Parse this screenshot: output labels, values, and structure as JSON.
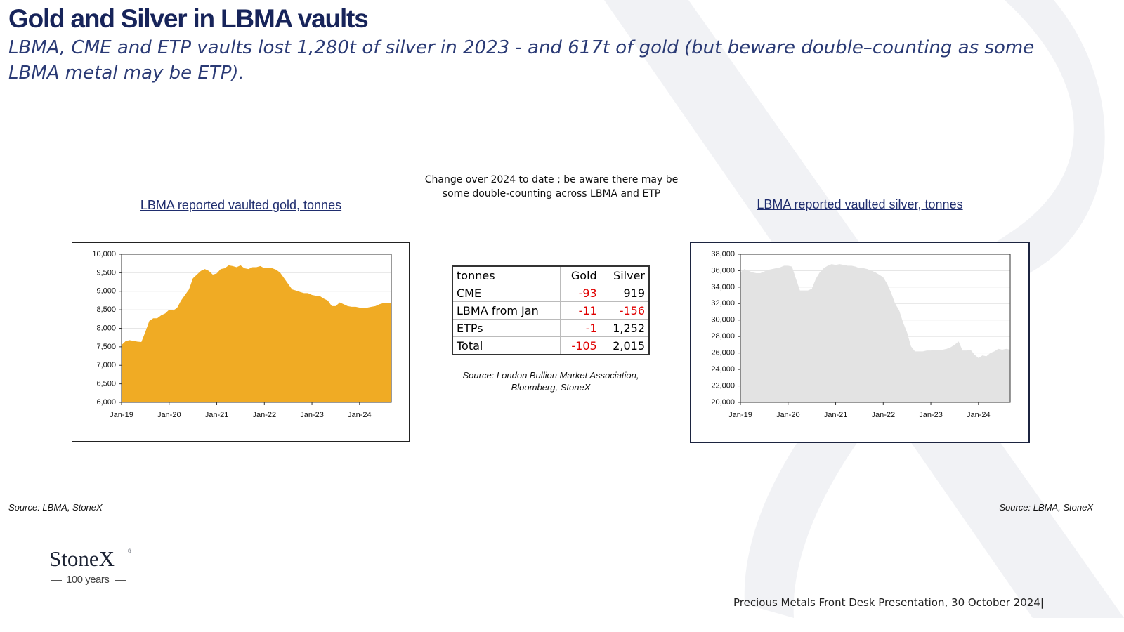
{
  "header": {
    "title": "Gold and Silver in LBMA vaults",
    "subtitle": "LBMA, CME and ETP vaults lost 1,280t of silver in 2023  - and 617t of gold (but beware double–counting as some LBMA metal may be ETP)."
  },
  "chart_data": [
    {
      "type": "area",
      "title": "LBMA reported vaulted gold, tonnes",
      "source": "Source: LBMA, StoneX",
      "color": "#f0ab24",
      "grid": true,
      "categories": [
        "Jan-19",
        null,
        null,
        null,
        null,
        null,
        null,
        null,
        null,
        null,
        null,
        null,
        "Jan-20",
        null,
        null,
        null,
        null,
        null,
        null,
        null,
        null,
        null,
        null,
        null,
        "Jan-21",
        null,
        null,
        null,
        null,
        null,
        null,
        null,
        null,
        null,
        null,
        null,
        "Jan-22",
        null,
        null,
        null,
        null,
        null,
        null,
        null,
        null,
        null,
        null,
        null,
        "Jan-23",
        null,
        null,
        null,
        null,
        null,
        null,
        null,
        null,
        null,
        null,
        null,
        "Jan-24",
        null,
        null,
        null,
        null,
        null,
        null,
        null,
        null
      ],
      "values": [
        7550,
        7650,
        7680,
        7660,
        7640,
        7630,
        7900,
        8200,
        8270,
        8270,
        8350,
        8400,
        8500,
        8480,
        8550,
        8750,
        8900,
        9050,
        9350,
        9450,
        9550,
        9600,
        9550,
        9450,
        9480,
        9600,
        9620,
        9700,
        9680,
        9650,
        9700,
        9620,
        9600,
        9650,
        9650,
        9680,
        9620,
        9620,
        9620,
        9580,
        9500,
        9350,
        9200,
        9050,
        9020,
        8980,
        8950,
        8950,
        8900,
        8880,
        8870,
        8800,
        8750,
        8600,
        8600,
        8700,
        8650,
        8600,
        8580,
        8580,
        8560,
        8560,
        8560,
        8580,
        8600,
        8650,
        8680,
        8680,
        8680
      ],
      "ylim": [
        6000,
        10000
      ],
      "yticks": [
        {
          "value": 6000,
          "label": "6,000"
        },
        {
          "value": 6500,
          "label": "6,500"
        },
        {
          "value": 7000,
          "label": "7,000"
        },
        {
          "value": 7500,
          "label": "7,500"
        },
        {
          "value": 8000,
          "label": "8,000"
        },
        {
          "value": 8500,
          "label": "8,500"
        },
        {
          "value": 9000,
          "label": "9,000"
        },
        {
          "value": 9500,
          "label": "9,500"
        },
        {
          "value": 10000,
          "label": "10,000"
        }
      ]
    },
    {
      "type": "area",
      "title": "LBMA reported vaulted silver, tonnes",
      "source": "Source: LBMA, StoneX",
      "color": "#e3e3e3",
      "grid": true,
      "categories": [
        "Jan-19",
        null,
        null,
        null,
        null,
        null,
        null,
        null,
        null,
        null,
        null,
        null,
        "Jan-20",
        null,
        null,
        null,
        null,
        null,
        null,
        null,
        null,
        null,
        null,
        null,
        "Jan-21",
        null,
        null,
        null,
        null,
        null,
        null,
        null,
        null,
        null,
        null,
        null,
        "Jan-22",
        null,
        null,
        null,
        null,
        null,
        null,
        null,
        null,
        null,
        null,
        null,
        "Jan-23",
        null,
        null,
        null,
        null,
        null,
        null,
        null,
        null,
        null,
        null,
        null,
        "Jan-24",
        null,
        null,
        null,
        null,
        null,
        null,
        null,
        null
      ],
      "values": [
        35800,
        36200,
        36000,
        35800,
        35700,
        35700,
        35900,
        36100,
        36200,
        36300,
        36400,
        36600,
        36600,
        36500,
        35000,
        33600,
        33600,
        33600,
        33800,
        35000,
        35800,
        36300,
        36600,
        36800,
        36700,
        36800,
        36700,
        36600,
        36600,
        36500,
        36300,
        36300,
        36200,
        36000,
        35800,
        35500,
        35200,
        34400,
        33300,
        32000,
        31200,
        29700,
        28500,
        26800,
        26200,
        26200,
        26200,
        26300,
        26300,
        26400,
        26300,
        26400,
        26500,
        26700,
        27000,
        27400,
        26300,
        26300,
        26400,
        25800,
        25400,
        25700,
        25600,
        26000,
        26200,
        26500,
        26400,
        26500,
        26400
      ],
      "ylim": [
        20000,
        38000
      ],
      "yticks": [
        {
          "value": 20000,
          "label": "20,000"
        },
        {
          "value": 22000,
          "label": "22,000"
        },
        {
          "value": 24000,
          "label": "24,000"
        },
        {
          "value": 26000,
          "label": "26,000"
        },
        {
          "value": 28000,
          "label": "28,000"
        },
        {
          "value": 30000,
          "label": "30,000"
        },
        {
          "value": 32000,
          "label": "32,000"
        },
        {
          "value": 34000,
          "label": "34,000"
        },
        {
          "value": 36000,
          "label": "36,000"
        },
        {
          "value": 38000,
          "label": "38,000"
        }
      ]
    }
  ],
  "table": {
    "note": "Change over 2024 to date ; be aware there may be some double-counting across LBMA and ETP",
    "header": [
      "tonnes",
      "Gold",
      "Silver"
    ],
    "rows": [
      [
        "CME",
        "-93",
        "919"
      ],
      [
        "LBMA from Jan",
        "-11",
        "-156"
      ],
      [
        "ETPs",
        "-1",
        "1,252"
      ],
      [
        "Total",
        "-105",
        "2,015"
      ]
    ],
    "source": "Source: London Bullion Market Association, Bloomberg, StoneX"
  },
  "logo": {
    "name": "StoneX",
    "mark": "®",
    "tagline": "100 years"
  },
  "footer": "Precious Metals Front Desk Presentation, 30 October 2024|"
}
